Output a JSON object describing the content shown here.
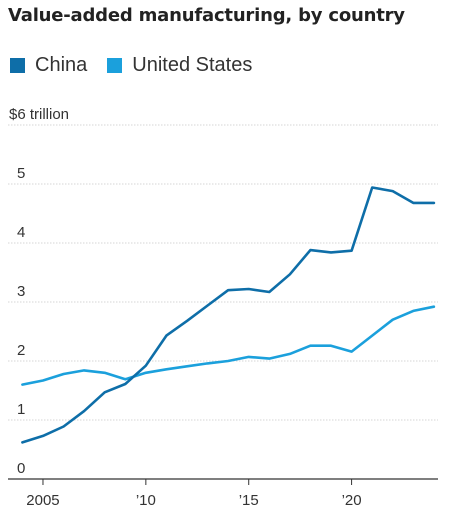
{
  "chart_data": {
    "type": "line",
    "title": "Value-added manufacturing, by country",
    "y_unit_label": "$6 trillion",
    "y_ticks": [
      "0",
      "1",
      "2",
      "3",
      "4",
      "5"
    ],
    "x_ticks": [
      "2005",
      "’10",
      "’15",
      "’20"
    ],
    "x_tick_values": [
      2005,
      2010,
      2015,
      2020
    ],
    "ylim": [
      0,
      6
    ],
    "xlim": [
      2003.3,
      2024.2
    ],
    "x": [
      2004,
      2005,
      2006,
      2007,
      2008,
      2009,
      2010,
      2011,
      2012,
      2013,
      2014,
      2015,
      2016,
      2017,
      2018,
      2019,
      2020,
      2021,
      2022,
      2023,
      2024
    ],
    "grid": true,
    "legend_position": "top-left",
    "series": [
      {
        "name": "China",
        "color": "#0e6ea8",
        "values": [
          0.62,
          0.73,
          0.89,
          1.15,
          1.47,
          1.61,
          1.92,
          2.43,
          2.68,
          2.94,
          3.2,
          3.22,
          3.17,
          3.47,
          3.88,
          3.84,
          3.87,
          4.94,
          4.88,
          4.68,
          4.68
        ]
      },
      {
        "name": "United States",
        "color": "#1ba0dc",
        "values": [
          1.6,
          1.67,
          1.78,
          1.84,
          1.8,
          1.69,
          1.8,
          1.86,
          1.91,
          1.96,
          2.0,
          2.07,
          2.04,
          2.12,
          2.26,
          2.26,
          2.16,
          2.43,
          2.7,
          2.85,
          2.92
        ]
      }
    ]
  }
}
